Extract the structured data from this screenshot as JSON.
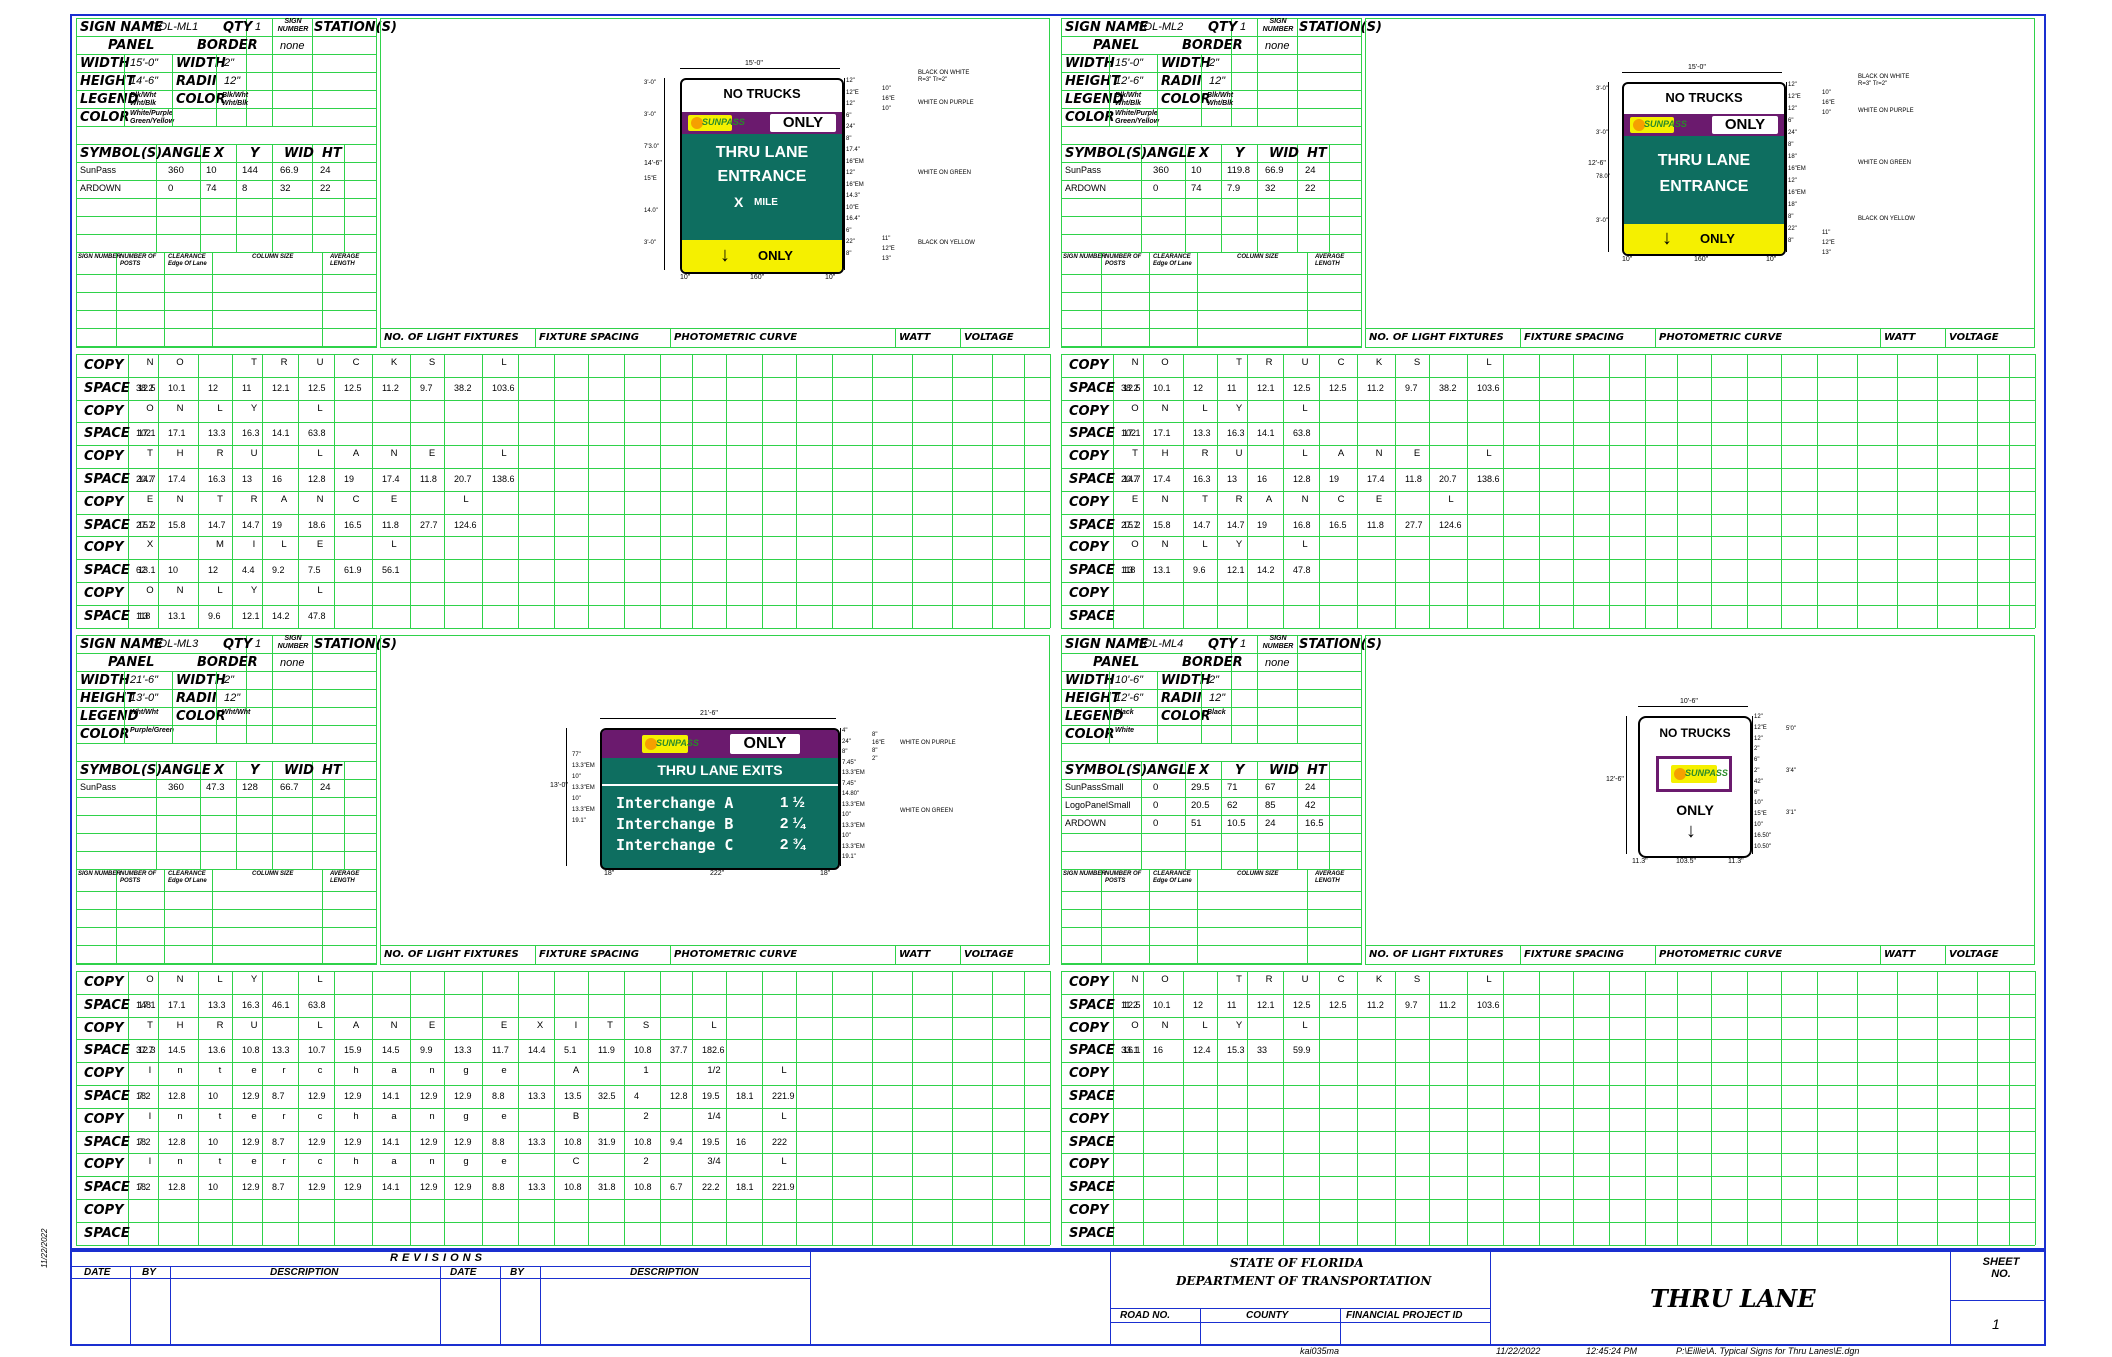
{
  "labels": {
    "sign_name": "SIGN NAME",
    "qty": "QTY",
    "sign_number": "SIGN NUMBER",
    "stations": "STATION(S)",
    "panel": "PANEL",
    "border": "BORDER",
    "width": "WIDTH",
    "height": "HEIGHT",
    "radii": "RADII",
    "legend": "LEGEND",
    "color": "COLOR",
    "symbols": "SYMBOL(S)",
    "angle": "ANGLE",
    "x": "X",
    "y": "Y",
    "wid": "WID",
    "ht": "HT",
    "post_headers": [
      "SIGN NUMBER",
      "NUMBER OF POSTS",
      "CLEARANCE Edge Of Lane",
      "COLUMN SIZE",
      "AVERAGE LENGTH"
    ],
    "fixture_headers": [
      "NO. OF LIGHT FIXTURES",
      "FIXTURE SPACING",
      "PHOTOMETRIC CURVE",
      "WATT",
      "VOLTAGE"
    ],
    "copy": "COPY",
    "space": "SPACE"
  },
  "signs": [
    {
      "name": "TOL-ML1",
      "qty": "1",
      "stations": "none",
      "width": "15'-0\"",
      "height": "14'-6\"",
      "border_width": "2\"",
      "radii": "12\"",
      "legend": "Blk/Wht Wht/Blk",
      "color_legend": "Blk/Wht Wht/Blk",
      "panel_color": "White/Purple Green/Yellow",
      "symbols": [
        {
          "name": "SunPass",
          "angle": "360",
          "x": "10",
          "y": "144",
          "wid": "66.9",
          "ht": "24"
        },
        {
          "name": "ARDOWN",
          "angle": "0",
          "x": "74",
          "y": "8",
          "wid": "32",
          "ht": "22"
        }
      ],
      "copy_rows": [
        {
          "copy": [
            "N",
            "O",
            "",
            "T",
            "R",
            "U",
            "C",
            "K",
            "S",
            "",
            "L"
          ],
          "space": [
            "38.2",
            "12.5",
            "10.1",
            "12",
            "11",
            "12.1",
            "12.5",
            "12.5",
            "11.2",
            "9.7",
            "38.2",
            "103.6"
          ]
        },
        {
          "copy": [
            "O",
            "N",
            "L",
            "Y",
            "",
            "L"
          ],
          "space": [
            "102",
            "17.1",
            "17.1",
            "13.3",
            "16.3",
            "14.1",
            "63.8"
          ]
        },
        {
          "copy": [
            "T",
            "H",
            "R",
            "U",
            "",
            "L",
            "A",
            "N",
            "E",
            "",
            "L"
          ],
          "space": [
            "20.7",
            "14.7",
            "17.4",
            "16.3",
            "13",
            "16",
            "12.8",
            "19",
            "17.4",
            "11.8",
            "20.7",
            "138.6"
          ]
        },
        {
          "copy": [
            "E",
            "N",
            "T",
            "R",
            "A",
            "N",
            "C",
            "E",
            "",
            "L"
          ],
          "space": [
            "27.7",
            "15.2",
            "15.8",
            "14.7",
            "14.7",
            "19",
            "18.6",
            "16.5",
            "11.8",
            "27.7",
            "124.6"
          ]
        },
        {
          "copy": [
            "X",
            "",
            "M",
            "I",
            "L",
            "E",
            "",
            "L"
          ],
          "space": [
            "62",
            "13.1",
            "10",
            "12",
            "4.4",
            "9.2",
            "7.5",
            "61.9",
            "56.1"
          ]
        },
        {
          "copy": [
            "O",
            "N",
            "L",
            "Y",
            "",
            "L"
          ],
          "space": [
            "118",
            "13",
            "13.1",
            "9.6",
            "12.1",
            "14.2",
            "47.8"
          ]
        }
      ]
    },
    {
      "name": "TOL-ML2",
      "qty": "1",
      "stations": "none",
      "width": "15'-0\"",
      "height": "12'-6\"",
      "border_width": "2\"",
      "radii": "12\"",
      "legend": "Blk/Wht Wht/Blk",
      "color_legend": "Blk/Wht Wht/Blk",
      "panel_color": "White/Purple Green/Yellow",
      "symbols": [
        {
          "name": "SunPass",
          "angle": "360",
          "x": "10",
          "y": "119.8",
          "wid": "66.9",
          "ht": "24"
        },
        {
          "name": "ARDOWN",
          "angle": "0",
          "x": "74",
          "y": "7.9",
          "wid": "32",
          "ht": "22"
        }
      ],
      "copy_rows": [
        {
          "copy": [
            "N",
            "O",
            "",
            "T",
            "R",
            "U",
            "C",
            "K",
            "S",
            "",
            "L"
          ],
          "space": [
            "38.2",
            "12.5",
            "10.1",
            "12",
            "11",
            "12.1",
            "12.5",
            "12.5",
            "11.2",
            "9.7",
            "38.2",
            "103.6"
          ]
        },
        {
          "copy": [
            "O",
            "N",
            "L",
            "Y",
            "",
            "L"
          ],
          "space": [
            "102",
            "17.1",
            "17.1",
            "13.3",
            "16.3",
            "14.1",
            "63.8"
          ]
        },
        {
          "copy": [
            "T",
            "H",
            "R",
            "U",
            "",
            "L",
            "A",
            "N",
            "E",
            "",
            "L"
          ],
          "space": [
            "20.7",
            "14.7",
            "17.4",
            "16.3",
            "13",
            "16",
            "12.8",
            "19",
            "17.4",
            "11.8",
            "20.7",
            "138.6"
          ]
        },
        {
          "copy": [
            "E",
            "N",
            "T",
            "R",
            "A",
            "N",
            "C",
            "E",
            "",
            "L"
          ],
          "space": [
            "27.7",
            "15.2",
            "15.8",
            "14.7",
            "14.7",
            "19",
            "16.8",
            "16.5",
            "11.8",
            "27.7",
            "124.6"
          ]
        },
        {
          "copy": [
            "O",
            "N",
            "L",
            "Y",
            "",
            "L"
          ],
          "space": [
            "118",
            "13",
            "13.1",
            "9.6",
            "12.1",
            "14.2",
            "47.8"
          ]
        },
        {
          "copy": [],
          "space": []
        }
      ]
    },
    {
      "name": "TOL-ML3",
      "qty": "1",
      "stations": "none",
      "width": "21'-6\"",
      "height": "13'-0\"",
      "border_width": "2\"",
      "radii": "12\"",
      "legend": "Wht/Wht",
      "color_legend": "Wht/Wht",
      "panel_color": "Purple/Green",
      "symbols": [
        {
          "name": "SunPass",
          "angle": "360",
          "x": "47.3",
          "y": "128",
          "wid": "66.7",
          "ht": "24"
        }
      ],
      "copy_rows": [
        {
          "copy": [
            "O",
            "N",
            "L",
            "Y",
            "",
            "L"
          ],
          "space": [
            "148",
            "17.1",
            "17.1",
            "13.3",
            "16.3",
            "46.1",
            "63.8"
          ]
        },
        {
          "copy": [
            "T",
            "H",
            "R",
            "U",
            "",
            "L",
            "A",
            "N",
            "E",
            "",
            "E",
            "X",
            "I",
            "T",
            "S",
            "",
            "L"
          ],
          "space": [
            "37.7",
            "12.3",
            "14.5",
            "13.6",
            "10.8",
            "13.3",
            "10.7",
            "15.9",
            "14.5",
            "9.9",
            "13.3",
            "11.7",
            "14.4",
            "5.1",
            "11.9",
            "10.8",
            "37.7",
            "182.6"
          ]
        },
        {
          "copy": [
            "I",
            "n",
            "t",
            "e",
            "r",
            "c",
            "h",
            "a",
            "n",
            "g",
            "e",
            "",
            "A",
            "",
            "1",
            "",
            "1/2",
            "",
            "L"
          ],
          "space": [
            "18",
            "7.2",
            "12.8",
            "10",
            "12.9",
            "8.7",
            "12.9",
            "12.9",
            "14.1",
            "12.9",
            "12.9",
            "8.8",
            "13.3",
            "13.5",
            "32.5",
            "4",
            "12.8",
            "19.5",
            "18.1",
            "221.9"
          ]
        },
        {
          "copy": [
            "I",
            "n",
            "t",
            "e",
            "r",
            "c",
            "h",
            "a",
            "n",
            "g",
            "e",
            "",
            "B",
            "",
            "2",
            "",
            "1/4",
            "",
            "L"
          ],
          "space": [
            "18",
            "7.2",
            "12.8",
            "10",
            "12.9",
            "8.7",
            "12.9",
            "12.9",
            "14.1",
            "12.9",
            "12.9",
            "8.8",
            "13.3",
            "10.8",
            "31.9",
            "10.8",
            "9.4",
            "19.5",
            "16",
            "222"
          ]
        },
        {
          "copy": [
            "I",
            "n",
            "t",
            "e",
            "r",
            "c",
            "h",
            "a",
            "n",
            "g",
            "e",
            "",
            "C",
            "",
            "2",
            "",
            "3/4",
            "",
            "L"
          ],
          "space": [
            "18",
            "7.2",
            "12.8",
            "10",
            "12.9",
            "8.7",
            "12.9",
            "12.9",
            "14.1",
            "12.9",
            "12.9",
            "8.8",
            "13.3",
            "10.8",
            "31.8",
            "10.8",
            "6.7",
            "22.2",
            "18.1",
            "221.9"
          ]
        },
        {
          "copy": [],
          "space": []
        }
      ]
    },
    {
      "name": "TOL-ML4",
      "qty": "1",
      "stations": "none",
      "width": "10'-6\"",
      "height": "12'-6\"",
      "border_width": "2\"",
      "radii": "12\"",
      "legend": "Black",
      "color_legend": "Black",
      "panel_color": "White",
      "symbols": [
        {
          "name": "SunPassSmall",
          "angle": "0",
          "x": "29.5",
          "y": "71",
          "wid": "67",
          "ht": "24"
        },
        {
          "name": "LogoPanelSmall",
          "angle": "0",
          "x": "20.5",
          "y": "62",
          "wid": "85",
          "ht": "42"
        },
        {
          "name": "ARDOWN",
          "angle": "0",
          "x": "51",
          "y": "10.5",
          "wid": "24",
          "ht": "16.5"
        }
      ],
      "copy_rows": [
        {
          "copy": [
            "N",
            "O",
            "",
            "T",
            "R",
            "U",
            "C",
            "K",
            "S",
            "",
            "L"
          ],
          "space": [
            "11.2",
            "12.5",
            "10.1",
            "12",
            "11",
            "12.1",
            "12.5",
            "12.5",
            "11.2",
            "9.7",
            "11.2",
            "103.6"
          ]
        },
        {
          "copy": [
            "O",
            "N",
            "L",
            "Y",
            "",
            "L"
          ],
          "space": [
            "33.1",
            "16.1",
            "16",
            "12.4",
            "15.3",
            "33",
            "59.9"
          ]
        },
        {
          "copy": [],
          "space": []
        },
        {
          "copy": [],
          "space": []
        },
        {
          "copy": [],
          "space": []
        },
        {
          "copy": [],
          "space": []
        }
      ]
    }
  ],
  "sign_art": {
    "s1": {
      "top": "NO TRUCKS",
      "sunpass": "SUNPASS",
      "only": "ONLY",
      "line1": "THRU LANE",
      "line2": "ENTRANCE",
      "line3_x": "X",
      "line3_mile": "MILE",
      "bottom_only": "ONLY",
      "width_dim": "15'-0\"",
      "height_dim": "14'-6\"",
      "left_margin": "10\"",
      "center": "160\"",
      "right_margin": "10\"",
      "left_dims": [
        "3'-0\"",
        "3'-0\"",
        "7'3.0\"",
        "15\"E",
        "14.0\"",
        "3'-0\""
      ],
      "right_dims": [
        "12\"",
        "12\"E",
        "12\"",
        "6\"",
        "24\"",
        "8\"",
        "17.4\"",
        "16\"EM",
        "12\"",
        "16\"EM",
        "14.3\"",
        "10\"E",
        "16.4\"",
        "6\"",
        "22\"",
        "8\""
      ],
      "far_right_dims": [
        "10\"",
        "16\"E",
        "10\"",
        "11\"",
        "12\"E",
        "13\""
      ],
      "notes": [
        "BLACK ON WHITE",
        "R=3\" Tr=2\"",
        "WHITE ON PURPLE",
        "WHITE ON GREEN",
        "BLACK ON YELLOW"
      ]
    },
    "s2": {
      "top": "NO TRUCKS",
      "sunpass": "SUNPASS",
      "only": "ONLY",
      "line1": "THRU LANE",
      "line2": "ENTRANCE",
      "bottom_only": "ONLY",
      "width_dim": "15'-0\"",
      "height_dim": "12'-6\"",
      "left_margin": "10\"",
      "center": "160\"",
      "right_margin": "10\"",
      "left_dims": [
        "3'-0\"",
        "3'-0\"",
        "78.0\"",
        "3'-0\""
      ],
      "right_dims": [
        "12\"",
        "12\"E",
        "12\"",
        "6\"",
        "24\"",
        "8\"",
        "18\"",
        "16\"EM",
        "12\"",
        "16\"EM",
        "18\"",
        "8\"",
        "22\"",
        "8\""
      ],
      "far_right_dims": [
        "10\"",
        "16\"E",
        "10\"",
        "11\"",
        "12\"E",
        "13\""
      ],
      "notes": [
        "BLACK ON WHITE",
        "R=3\" Tr=2\"",
        "WHITE ON PURPLE",
        "WHITE ON GREEN",
        "BLACK ON YELLOW"
      ]
    },
    "s3": {
      "sunpass": "SUNPASS",
      "only": "ONLY",
      "line1": "THRU LANE EXITS",
      "rows": [
        {
          "name": "Interchange A",
          "num": "1 ½"
        },
        {
          "name": "Interchange B",
          "num": "2 ¼"
        },
        {
          "name": "Interchange C",
          "num": "2 ¾"
        }
      ],
      "width_dim": "21'-6\"",
      "height_dim": "13'-0\"",
      "left_margin": "18\"",
      "center": "222\"",
      "right_margin": "18\"",
      "left_dims": [
        "77\"",
        "13.3\"EM",
        "10\"",
        "13.3\"EM",
        "10\"",
        "13.3\"EM",
        "19.1\""
      ],
      "right_dims": [
        "4\"",
        "24\"",
        "8\"",
        "7.45\"",
        "13.3\"EM",
        "7.45\"",
        "14.80\"",
        "13.3\"EM",
        "10\"",
        "13.3\"EM",
        "10\"",
        "13.3\"EM",
        "19.1\""
      ],
      "far_right_dims": [
        "8\"",
        "16\"E",
        "8\"",
        "2\""
      ],
      "notes": [
        "WHITE ON PURPLE",
        "WHITE ON GREEN"
      ]
    },
    "s4": {
      "top": "NO TRUCKS",
      "sunpass": "SUNPASS",
      "only": "ONLY",
      "width_dim": "10'-6\"",
      "height_dim": "12'-6\"",
      "left_margin": "11.3\"",
      "center": "103.5\"",
      "right_margin": "11.3\"",
      "right_dims": [
        "12\"",
        "12\"E",
        "12\"",
        "2\"",
        "6\"",
        "2\"",
        "42\"",
        "6\"",
        "10\"",
        "15\"E",
        "10\"",
        "16.50\"",
        "10.50\""
      ],
      "far_right_dims": [
        "5'0\"",
        "3'4\"",
        "3'1\""
      ]
    }
  },
  "title_block": {
    "revisions": "REVISIONS",
    "rev_headers": [
      "DATE",
      "BY",
      "DESCRIPTION",
      "DATE",
      "BY",
      "DESCRIPTION"
    ],
    "state": "STATE OF FLORIDA",
    "dept": "DEPARTMENT OF TRANSPORTATION",
    "road_no": "ROAD NO.",
    "county": "COUNTY",
    "fin_proj": "FINANCIAL PROJECT ID",
    "title": "THRU LANE",
    "sheet_label": "SHEET NO.",
    "sheet_no": "1",
    "margin_date": "11/22/2022",
    "footer_user": "kai035ma",
    "footer_date": "11/22/2022",
    "footer_time": "12:45:24 PM",
    "footer_path": "P:\\Eillie\\A. Typical Signs for Thru Lanes\\E.dgn"
  },
  "colors": {
    "grid": "#2fd24a",
    "frame": "#1a2fd0",
    "sign_green": "#0e6e60",
    "sign_purple": "#6b1a6e",
    "sign_yellow": "#f5f000"
  }
}
